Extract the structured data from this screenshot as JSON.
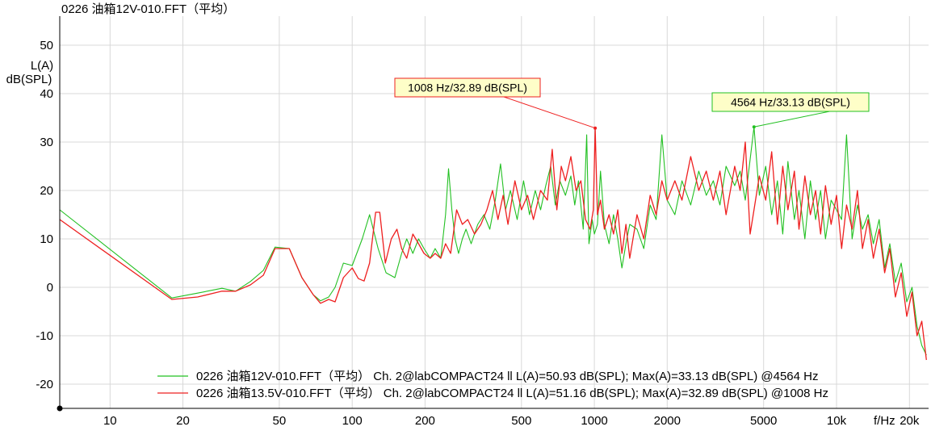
{
  "window_title": "0226 油箱12V-010.FFT（平均）",
  "chart_data": {
    "type": "line",
    "title": "0226 油箱12V-010.FFT（平均）",
    "xlabel": "f/Hz",
    "ylabel_line1": "L(A)",
    "ylabel_line2": "dB(SPL)",
    "xscale": "log",
    "xlim": [
      6.2,
      24000
    ],
    "ylim": [
      -25,
      56
    ],
    "grid": true,
    "legend_position": "bottom-center",
    "x_ticks": [
      {
        "value": 10,
        "label": "10"
      },
      {
        "value": 20,
        "label": "20"
      },
      {
        "value": 50,
        "label": "50"
      },
      {
        "value": 100,
        "label": "100"
      },
      {
        "value": 200,
        "label": "200"
      },
      {
        "value": 500,
        "label": "500"
      },
      {
        "value": 1000,
        "label": "1000"
      },
      {
        "value": 2000,
        "label": "2000"
      },
      {
        "value": 5000,
        "label": "5000"
      },
      {
        "value": 10000,
        "label": "10k"
      },
      {
        "value": 20000,
        "label": "20k"
      }
    ],
    "y_ticks": [
      {
        "value": 50,
        "label": "50"
      },
      {
        "value": 40,
        "label": "40"
      },
      {
        "value": 30,
        "label": "30"
      },
      {
        "value": 20,
        "label": "20"
      },
      {
        "value": 10,
        "label": "10"
      },
      {
        "value": 0,
        "label": "0"
      },
      {
        "value": -10,
        "label": "-10"
      },
      {
        "value": -20,
        "label": "-20"
      }
    ],
    "series": [
      {
        "name": "0226 油箱12V-010.FFT（平均）",
        "legend_text": "0226 油箱12V-010.FFT（平均）  Ch. 2@labCOMPACT24 ll L(A)=50.93 dB(SPL);  Max(A)=33.13 dB(SPL) @4564 Hz",
        "color": "#22c022",
        "points": [
          [
            6.2,
            16
          ],
          [
            18,
            -2.2
          ],
          [
            23,
            -1.2
          ],
          [
            29,
            -0.2
          ],
          [
            33,
            -0.8
          ],
          [
            38,
            1.2
          ],
          [
            43,
            3.5
          ],
          [
            48,
            8.3
          ],
          [
            55,
            8
          ],
          [
            62,
            2
          ],
          [
            69,
            -1.5
          ],
          [
            74,
            -2.8
          ],
          [
            80,
            -2
          ],
          [
            85,
            0
          ],
          [
            92,
            5
          ],
          [
            100,
            4.5
          ],
          [
            110,
            10
          ],
          [
            118,
            15
          ],
          [
            128,
            8
          ],
          [
            138,
            3
          ],
          [
            150,
            2
          ],
          [
            160,
            7
          ],
          [
            168,
            10
          ],
          [
            178,
            7
          ],
          [
            188,
            10
          ],
          [
            198,
            8
          ],
          [
            210,
            6
          ],
          [
            220,
            8
          ],
          [
            232,
            6
          ],
          [
            243,
            15
          ],
          [
            250,
            24.5
          ],
          [
            258,
            16
          ],
          [
            266,
            10
          ],
          [
            275,
            7
          ],
          [
            285,
            10
          ],
          [
            295,
            12
          ],
          [
            310,
            9
          ],
          [
            330,
            13
          ],
          [
            350,
            15
          ],
          [
            370,
            12
          ],
          [
            390,
            18
          ],
          [
            410,
            25.5
          ],
          [
            430,
            16
          ],
          [
            450,
            20
          ],
          [
            480,
            14
          ],
          [
            510,
            22
          ],
          [
            540,
            15
          ],
          [
            570,
            20
          ],
          [
            600,
            16
          ],
          [
            630,
            21
          ],
          [
            660,
            25
          ],
          [
            690,
            17
          ],
          [
            720,
            22
          ],
          [
            760,
            19
          ],
          [
            800,
            23
          ],
          [
            830,
            17
          ],
          [
            860,
            22
          ],
          [
            900,
            12
          ],
          [
            930,
            31.5
          ],
          [
            950,
            9
          ],
          [
            980,
            14
          ],
          [
            1000,
            11
          ],
          [
            1030,
            13
          ],
          [
            1060,
            24
          ],
          [
            1100,
            13
          ],
          [
            1150,
            9
          ],
          [
            1200,
            15
          ],
          [
            1250,
            10
          ],
          [
            1300,
            4
          ],
          [
            1350,
            9
          ],
          [
            1400,
            13
          ],
          [
            1500,
            12
          ],
          [
            1600,
            8
          ],
          [
            1700,
            17
          ],
          [
            1800,
            14
          ],
          [
            1900,
            31.5
          ],
          [
            2000,
            18
          ],
          [
            2150,
            15
          ],
          [
            2300,
            22
          ],
          [
            2500,
            17
          ],
          [
            2700,
            24
          ],
          [
            2900,
            19
          ],
          [
            3100,
            22
          ],
          [
            3300,
            17
          ],
          [
            3500,
            25
          ],
          [
            3800,
            21
          ],
          [
            4000,
            24
          ],
          [
            4200,
            18
          ],
          [
            4564,
            33.13
          ],
          [
            4800,
            19
          ],
          [
            5100,
            25
          ],
          [
            5400,
            15
          ],
          [
            5700,
            22
          ],
          [
            6000,
            11
          ],
          [
            6300,
            26
          ],
          [
            6700,
            14
          ],
          [
            7000,
            20
          ],
          [
            7400,
            10
          ],
          [
            7800,
            22
          ],
          [
            8200,
            14
          ],
          [
            8600,
            20
          ],
          [
            9000,
            10
          ],
          [
            9500,
            18
          ],
          [
            10000,
            16
          ],
          [
            10500,
            14
          ],
          [
            11000,
            31.5
          ],
          [
            11600,
            10
          ],
          [
            12200,
            17
          ],
          [
            12800,
            12
          ],
          [
            13500,
            15
          ],
          [
            14200,
            9
          ],
          [
            15000,
            14
          ],
          [
            15800,
            4
          ],
          [
            16600,
            9
          ],
          [
            17500,
            1
          ],
          [
            18500,
            5
          ],
          [
            19500,
            -3
          ],
          [
            20500,
            0
          ],
          [
            21500,
            -8
          ],
          [
            22500,
            -12
          ],
          [
            23500,
            -14
          ]
        ]
      },
      {
        "name": "0226 油箱13.5V-010.FFT（平均）",
        "legend_text": "0226 油箱13.5V-010.FFT（平均）  Ch. 2@labCOMPACT24 ll L(A)=51.16 dB(SPL);  Max(A)=32.89 dB(SPL) @1008 Hz",
        "color": "#ee2020",
        "points": [
          [
            6.2,
            14
          ],
          [
            18,
            -2.5
          ],
          [
            23,
            -2
          ],
          [
            29,
            -0.8
          ],
          [
            33,
            -0.8
          ],
          [
            38,
            0.5
          ],
          [
            43,
            2.5
          ],
          [
            48,
            8
          ],
          [
            55,
            8
          ],
          [
            62,
            2
          ],
          [
            69,
            -1.5
          ],
          [
            74,
            -3.3
          ],
          [
            80,
            -2.5
          ],
          [
            85,
            -3
          ],
          [
            92,
            2
          ],
          [
            100,
            4
          ],
          [
            106,
            1.8
          ],
          [
            112,
            1.3
          ],
          [
            118,
            5
          ],
          [
            125,
            15.5
          ],
          [
            130,
            15.5
          ],
          [
            137,
            5
          ],
          [
            145,
            10
          ],
          [
            153,
            12
          ],
          [
            160,
            8
          ],
          [
            168,
            6
          ],
          [
            178,
            11
          ],
          [
            188,
            9
          ],
          [
            198,
            7
          ],
          [
            210,
            6
          ],
          [
            220,
            7
          ],
          [
            232,
            6
          ],
          [
            243,
            9
          ],
          [
            255,
            7
          ],
          [
            270,
            16
          ],
          [
            285,
            13
          ],
          [
            300,
            14
          ],
          [
            320,
            11
          ],
          [
            340,
            13
          ],
          [
            360,
            16
          ],
          [
            380,
            20
          ],
          [
            400,
            14
          ],
          [
            420,
            19
          ],
          [
            440,
            13
          ],
          [
            470,
            22
          ],
          [
            500,
            16
          ],
          [
            530,
            19
          ],
          [
            560,
            14
          ],
          [
            600,
            20
          ],
          [
            640,
            18
          ],
          [
            670,
            28.5
          ],
          [
            700,
            16
          ],
          [
            730,
            25
          ],
          [
            760,
            22
          ],
          [
            800,
            27
          ],
          [
            840,
            20
          ],
          [
            880,
            22
          ],
          [
            920,
            14
          ],
          [
            960,
            12
          ],
          [
            990,
            16
          ],
          [
            1008,
            32.89
          ],
          [
            1030,
            15
          ],
          [
            1060,
            18
          ],
          [
            1100,
            12
          ],
          [
            1150,
            15
          ],
          [
            1200,
            11
          ],
          [
            1250,
            16
          ],
          [
            1300,
            7
          ],
          [
            1350,
            13
          ],
          [
            1400,
            6
          ],
          [
            1500,
            15
          ],
          [
            1600,
            10
          ],
          [
            1700,
            19
          ],
          [
            1800,
            15
          ],
          [
            1900,
            22
          ],
          [
            2000,
            18
          ],
          [
            2150,
            22
          ],
          [
            2300,
            18
          ],
          [
            2500,
            27
          ],
          [
            2700,
            20
          ],
          [
            2900,
            24
          ],
          [
            3100,
            18
          ],
          [
            3300,
            24
          ],
          [
            3500,
            15
          ],
          [
            3800,
            25
          ],
          [
            4000,
            20
          ],
          [
            4200,
            30
          ],
          [
            4400,
            11
          ],
          [
            4564,
            16
          ],
          [
            4800,
            23
          ],
          [
            5100,
            18
          ],
          [
            5400,
            28
          ],
          [
            5700,
            13
          ],
          [
            6000,
            25
          ],
          [
            6300,
            16
          ],
          [
            6700,
            24
          ],
          [
            7000,
            12
          ],
          [
            7400,
            23
          ],
          [
            7800,
            15
          ],
          [
            8200,
            20
          ],
          [
            8600,
            11
          ],
          [
            9000,
            21
          ],
          [
            9500,
            13
          ],
          [
            10000,
            19
          ],
          [
            10500,
            8
          ],
          [
            11000,
            17
          ],
          [
            11600,
            12
          ],
          [
            12200,
            20
          ],
          [
            12800,
            8
          ],
          [
            13500,
            14
          ],
          [
            14200,
            6
          ],
          [
            15000,
            12
          ],
          [
            15800,
            3
          ],
          [
            16600,
            8
          ],
          [
            17500,
            -2
          ],
          [
            18500,
            3
          ],
          [
            19500,
            -6
          ],
          [
            20500,
            -1
          ],
          [
            21500,
            -10
          ],
          [
            22500,
            -7
          ],
          [
            23500,
            -15
          ]
        ]
      }
    ],
    "annotations": [
      {
        "series": 1,
        "x": 1008,
        "y": 32.89,
        "text": "1008 Hz/32.89 dB(SPL)",
        "color": "#ee2020",
        "fill": "#fefec8"
      },
      {
        "series": 0,
        "x": 4564,
        "y": 33.13,
        "text": "4564 Hz/33.13 dB(SPL)",
        "color": "#22c022",
        "fill": "#fefec8"
      }
    ]
  }
}
